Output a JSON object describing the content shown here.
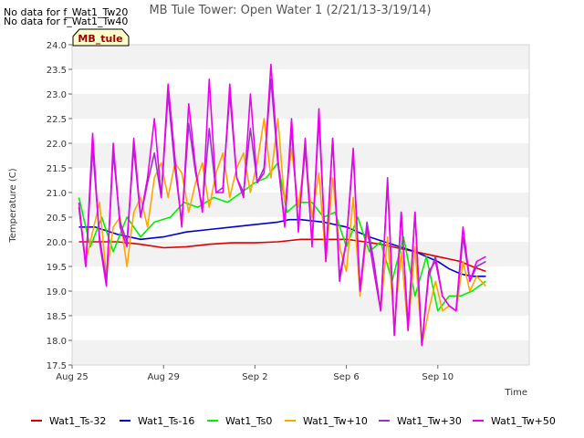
{
  "notes": [
    "No data for f_Wat1_Tw20",
    "No data for f_Wat1_Tw40"
  ],
  "tag": {
    "label": "MB_tule",
    "fill": "#ffffcc",
    "text_color": "#990000"
  },
  "chart_data": {
    "type": "line",
    "title": "MB Tule Tower: Open Water 1 (2/21/13-3/19/14)",
    "xlabel": "Time",
    "ylabel": "Temperature (C)",
    "ylim": [
      17.5,
      24.0
    ],
    "y_ticks": [
      17.5,
      18.0,
      18.5,
      19.0,
      19.5,
      20.0,
      20.5,
      21.0,
      21.5,
      22.0,
      22.5,
      23.0,
      23.5,
      24.0
    ],
    "xlim": [
      0,
      20.0
    ],
    "x_ticks": [
      {
        "x": 0,
        "label": "Aug 25"
      },
      {
        "x": 4,
        "label": "Aug 29"
      },
      {
        "x": 8,
        "label": "Sep 2"
      },
      {
        "x": 12,
        "label": "Sep 6"
      },
      {
        "x": 16,
        "label": "Sep 10"
      }
    ],
    "grid": "alternating horizontal bands",
    "legend_position": "bottom",
    "series": [
      {
        "name": "Wat1_Ts-32",
        "color": "#dd0000",
        "x": [
          0.3,
          1,
          2,
          3,
          4,
          5,
          6,
          7,
          8,
          9,
          10,
          11,
          12,
          12.8,
          13.5,
          14,
          15,
          16,
          16.5,
          17,
          17.5,
          18.1
        ],
        "y": [
          20.0,
          20.0,
          20.0,
          19.95,
          19.88,
          19.9,
          19.95,
          19.98,
          19.98,
          20.0,
          20.05,
          20.05,
          20.05,
          20.0,
          19.95,
          19.9,
          19.8,
          19.7,
          19.65,
          19.6,
          19.5,
          19.4
        ]
      },
      {
        "name": "Wat1_Ts-16",
        "color": "#0000cc",
        "x": [
          0.3,
          1,
          2,
          3,
          4,
          5,
          6,
          7,
          8,
          9,
          9.5,
          10,
          11,
          12,
          12.5,
          13,
          14,
          15,
          16,
          16.5,
          17,
          17.5,
          18.1
        ],
        "y": [
          20.3,
          20.3,
          20.15,
          20.05,
          20.1,
          20.2,
          20.25,
          20.3,
          20.35,
          20.4,
          20.45,
          20.45,
          20.4,
          20.3,
          20.2,
          20.1,
          19.95,
          19.8,
          19.6,
          19.45,
          19.35,
          19.3,
          19.3
        ]
      },
      {
        "name": "Wat1_Ts0",
        "color": "#00ee00",
        "x": [
          0.3,
          0.8,
          1.3,
          1.8,
          2.4,
          3,
          3.6,
          4.3,
          4.9,
          5.5,
          6.2,
          6.8,
          7.4,
          8,
          8.5,
          9,
          9.4,
          9.9,
          10.5,
          11,
          11.5,
          12,
          12.5,
          13,
          13.5,
          14,
          14.5,
          15,
          15.5,
          16,
          16.5,
          17,
          17.5,
          18.1
        ],
        "y": [
          20.9,
          19.9,
          20.5,
          19.8,
          20.5,
          20.1,
          20.4,
          20.5,
          20.8,
          20.7,
          20.9,
          20.8,
          21.0,
          21.2,
          21.3,
          21.6,
          20.6,
          20.8,
          20.8,
          20.5,
          20.6,
          19.9,
          20.5,
          19.8,
          20.0,
          19.2,
          20.1,
          18.9,
          19.7,
          18.6,
          18.9,
          18.9,
          19.0,
          19.2
        ]
      },
      {
        "name": "Wat1_Tw+10",
        "color": "#ffa500",
        "x": [
          0.3,
          0.6,
          0.9,
          1.2,
          1.5,
          1.8,
          2.1,
          2.4,
          2.7,
          3,
          3.3,
          3.6,
          3.9,
          4.2,
          4.5,
          4.8,
          5.1,
          5.4,
          5.7,
          6,
          6.3,
          6.6,
          6.9,
          7.2,
          7.5,
          7.8,
          8.1,
          8.4,
          8.7,
          9,
          9.3,
          9.6,
          9.9,
          10.2,
          10.5,
          10.8,
          11.1,
          11.4,
          11.7,
          12,
          12.3,
          12.6,
          12.9,
          13.2,
          13.5,
          13.8,
          14.1,
          14.4,
          14.7,
          15,
          15.3,
          15.6,
          15.9,
          16.2,
          16.5,
          16.8,
          17.1,
          17.4,
          17.7,
          18.1
        ],
        "y": [
          20.7,
          19.6,
          20.2,
          20.8,
          19.3,
          20.3,
          20.5,
          19.5,
          20.6,
          20.9,
          20.3,
          21.3,
          21.6,
          20.9,
          21.6,
          21.4,
          20.6,
          21.2,
          21.6,
          20.7,
          21.4,
          21.8,
          20.9,
          21.5,
          21.8,
          21.0,
          21.6,
          22.5,
          21.3,
          22.5,
          20.8,
          21.9,
          20.7,
          21.8,
          20.5,
          21.4,
          19.6,
          21.3,
          19.9,
          19.4,
          20.9,
          18.9,
          20.2,
          19.6,
          18.6,
          20.1,
          18.3,
          19.8,
          18.2,
          19.9,
          17.9,
          18.6,
          19.2,
          18.6,
          18.7,
          18.6,
          19.6,
          19.0,
          19.3,
          19.1
        ]
      },
      {
        "name": "Wat1_Tw+30",
        "color": "#9933cc",
        "x": [
          0.3,
          0.6,
          0.9,
          1.2,
          1.5,
          1.8,
          2.1,
          2.4,
          2.7,
          3,
          3.3,
          3.6,
          3.9,
          4.2,
          4.5,
          4.8,
          5.1,
          5.4,
          5.7,
          6,
          6.3,
          6.6,
          6.9,
          7.2,
          7.5,
          7.8,
          8.1,
          8.4,
          8.7,
          9,
          9.3,
          9.6,
          9.9,
          10.2,
          10.5,
          10.8,
          11.1,
          11.4,
          11.7,
          12,
          12.3,
          12.6,
          12.9,
          13.2,
          13.5,
          13.8,
          14.1,
          14.4,
          14.7,
          15,
          15.3,
          15.6,
          15.9,
          16.2,
          16.5,
          16.8,
          17.1,
          17.4,
          17.7,
          18.1
        ],
        "y": [
          20.7,
          19.5,
          21.9,
          20.1,
          19.2,
          21.8,
          20.4,
          20.0,
          21.9,
          20.5,
          21.2,
          21.8,
          20.9,
          23.0,
          21.5,
          20.4,
          22.4,
          21.4,
          20.7,
          22.3,
          21.0,
          21.1,
          23.0,
          21.3,
          21.0,
          22.3,
          21.2,
          21.5,
          23.3,
          21.6,
          20.4,
          22.3,
          20.3,
          21.9,
          20.0,
          22.5,
          19.7,
          22.1,
          19.3,
          20.0,
          21.8,
          19.0,
          20.4,
          19.6,
          18.6,
          21.3,
          18.1,
          20.6,
          18.3,
          20.6,
          17.9,
          19.3,
          19.7,
          18.9,
          18.7,
          18.6,
          20.1,
          19.2,
          19.5,
          19.6
        ]
      },
      {
        "name": "Wat1_Tw+50",
        "color": "#ee00ee",
        "x": [
          0.3,
          0.6,
          0.9,
          1.2,
          1.5,
          1.8,
          2.1,
          2.4,
          2.7,
          3,
          3.3,
          3.6,
          3.9,
          4.2,
          4.5,
          4.8,
          5.1,
          5.4,
          5.7,
          6,
          6.3,
          6.6,
          6.9,
          7.2,
          7.5,
          7.8,
          8.1,
          8.4,
          8.7,
          9,
          9.3,
          9.6,
          9.9,
          10.2,
          10.5,
          10.8,
          11.1,
          11.4,
          11.7,
          12,
          12.3,
          12.6,
          12.9,
          13.2,
          13.5,
          13.8,
          14.1,
          14.4,
          14.7,
          15,
          15.3,
          15.6,
          15.9,
          16.2,
          16.5,
          16.8,
          17.1,
          17.4,
          17.7,
          18.1
        ],
        "y": [
          20.8,
          19.5,
          22.2,
          20.0,
          19.1,
          22.0,
          20.3,
          19.9,
          22.1,
          20.5,
          21.3,
          22.5,
          20.9,
          23.2,
          21.7,
          20.3,
          22.8,
          21.5,
          20.6,
          23.3,
          21.0,
          21.0,
          23.2,
          21.3,
          20.9,
          23.0,
          21.2,
          21.4,
          23.6,
          21.7,
          20.3,
          22.5,
          20.2,
          22.1,
          19.9,
          22.7,
          19.6,
          22.1,
          19.2,
          20.0,
          21.9,
          19.0,
          20.3,
          19.4,
          18.6,
          21.2,
          18.1,
          20.6,
          18.2,
          20.6,
          17.9,
          19.4,
          19.6,
          18.9,
          18.7,
          18.6,
          20.3,
          19.2,
          19.6,
          19.7
        ]
      }
    ]
  }
}
